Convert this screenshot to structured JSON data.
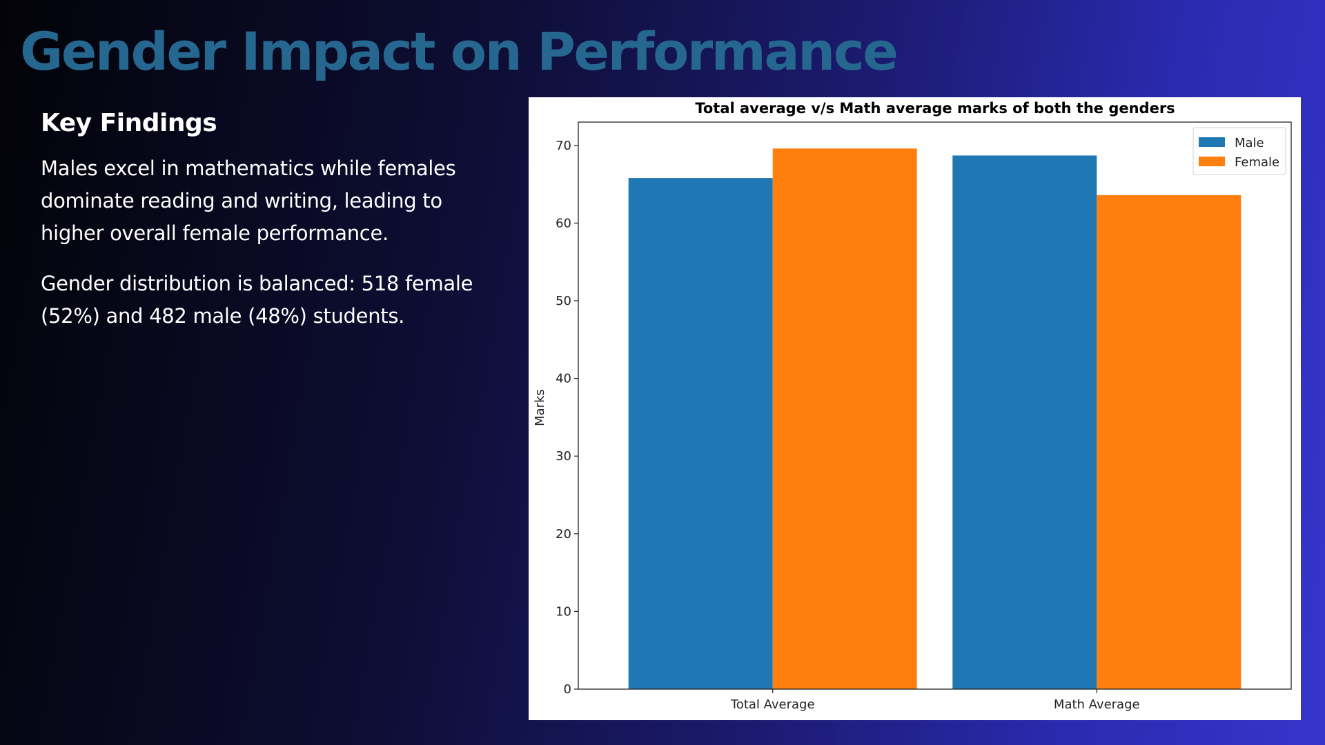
{
  "slide": {
    "title": "Gender Impact on Performance"
  },
  "findings": {
    "heading": "Key Findings",
    "paragraph_1": "Males excel in mathematics while females dominate reading and writing, leading to higher overall female performance.",
    "paragraph_2": "Gender distribution is balanced: 518 female (52%) and 482 male (48%) students."
  },
  "chart_data": {
    "type": "bar",
    "title": "Total average v/s Math average marks of both the genders",
    "xlabel": "",
    "ylabel": "Marks",
    "categories": [
      "Total Average",
      "Math Average"
    ],
    "series": [
      {
        "name": "Male",
        "color": "#1f77b4",
        "values": [
          65.8,
          68.7
        ]
      },
      {
        "name": "Female",
        "color": "#ff7f0e",
        "values": [
          69.6,
          63.6
        ]
      }
    ],
    "ylim": [
      0,
      73
    ],
    "yticks": [
      0,
      10,
      20,
      30,
      40,
      50,
      60,
      70
    ],
    "legend_position": "top-right",
    "grid": false
  }
}
